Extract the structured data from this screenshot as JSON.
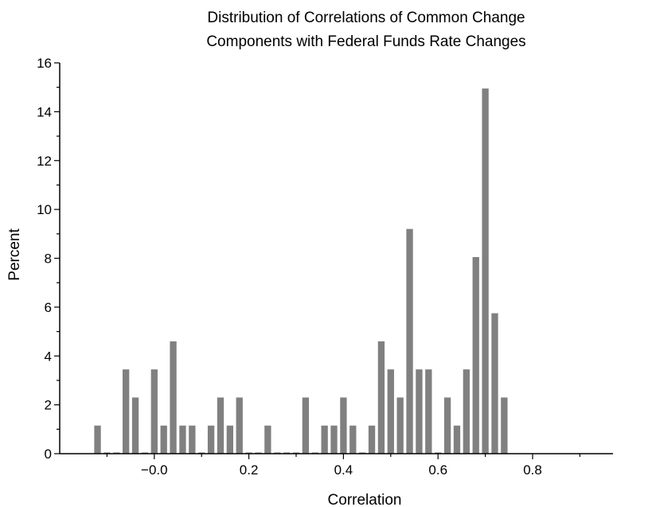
{
  "chart_data": {
    "type": "bar",
    "title": [
      "Distribution of Correlations of Common Change",
      "Components with Federal Funds Rate Changes"
    ],
    "xlabel": "Correlation",
    "ylabel": "Percent",
    "xlim": [
      -0.2,
      0.97
    ],
    "ylim": [
      0,
      16
    ],
    "x_ticks": [
      {
        "value": 0.0,
        "label": "−0.0"
      },
      {
        "value": 0.2,
        "label": "0.2"
      },
      {
        "value": 0.4,
        "label": "0.4"
      },
      {
        "value": 0.6,
        "label": "0.6"
      },
      {
        "value": 0.8,
        "label": "0.8"
      }
    ],
    "y_ticks": [
      0,
      2,
      4,
      6,
      8,
      10,
      12,
      14,
      16
    ],
    "bar_color": "#808080",
    "bar_width": 0.014,
    "x": [
      -0.12,
      -0.1,
      -0.08,
      -0.06,
      -0.04,
      -0.02,
      0.0,
      0.02,
      0.04,
      0.06,
      0.08,
      0.1,
      0.12,
      0.14,
      0.16,
      0.18,
      0.2,
      0.22,
      0.24,
      0.26,
      0.28,
      0.3,
      0.32,
      0.34,
      0.36,
      0.38,
      0.4,
      0.42,
      0.44,
      0.46,
      0.48,
      0.5,
      0.52,
      0.54,
      0.56,
      0.58,
      0.6,
      0.62,
      0.64,
      0.66,
      0.68,
      0.7,
      0.72,
      0.74,
      0.76,
      0.78,
      0.8,
      0.82
    ],
    "values": [
      1.15,
      0.05,
      0.05,
      3.45,
      2.3,
      0.05,
      3.45,
      1.15,
      4.6,
      1.15,
      1.15,
      0.05,
      1.15,
      2.3,
      1.15,
      2.3,
      0.05,
      0.05,
      1.15,
      0.05,
      0.05,
      0.05,
      2.3,
      0.05,
      1.15,
      1.15,
      2.3,
      1.15,
      0.05,
      1.15,
      4.6,
      3.45,
      2.3,
      9.2,
      3.45,
      3.45,
      0.05,
      2.3,
      1.15,
      3.45,
      8.05,
      14.95,
      5.75,
      2.3,
      0,
      0,
      0,
      0
    ]
  }
}
